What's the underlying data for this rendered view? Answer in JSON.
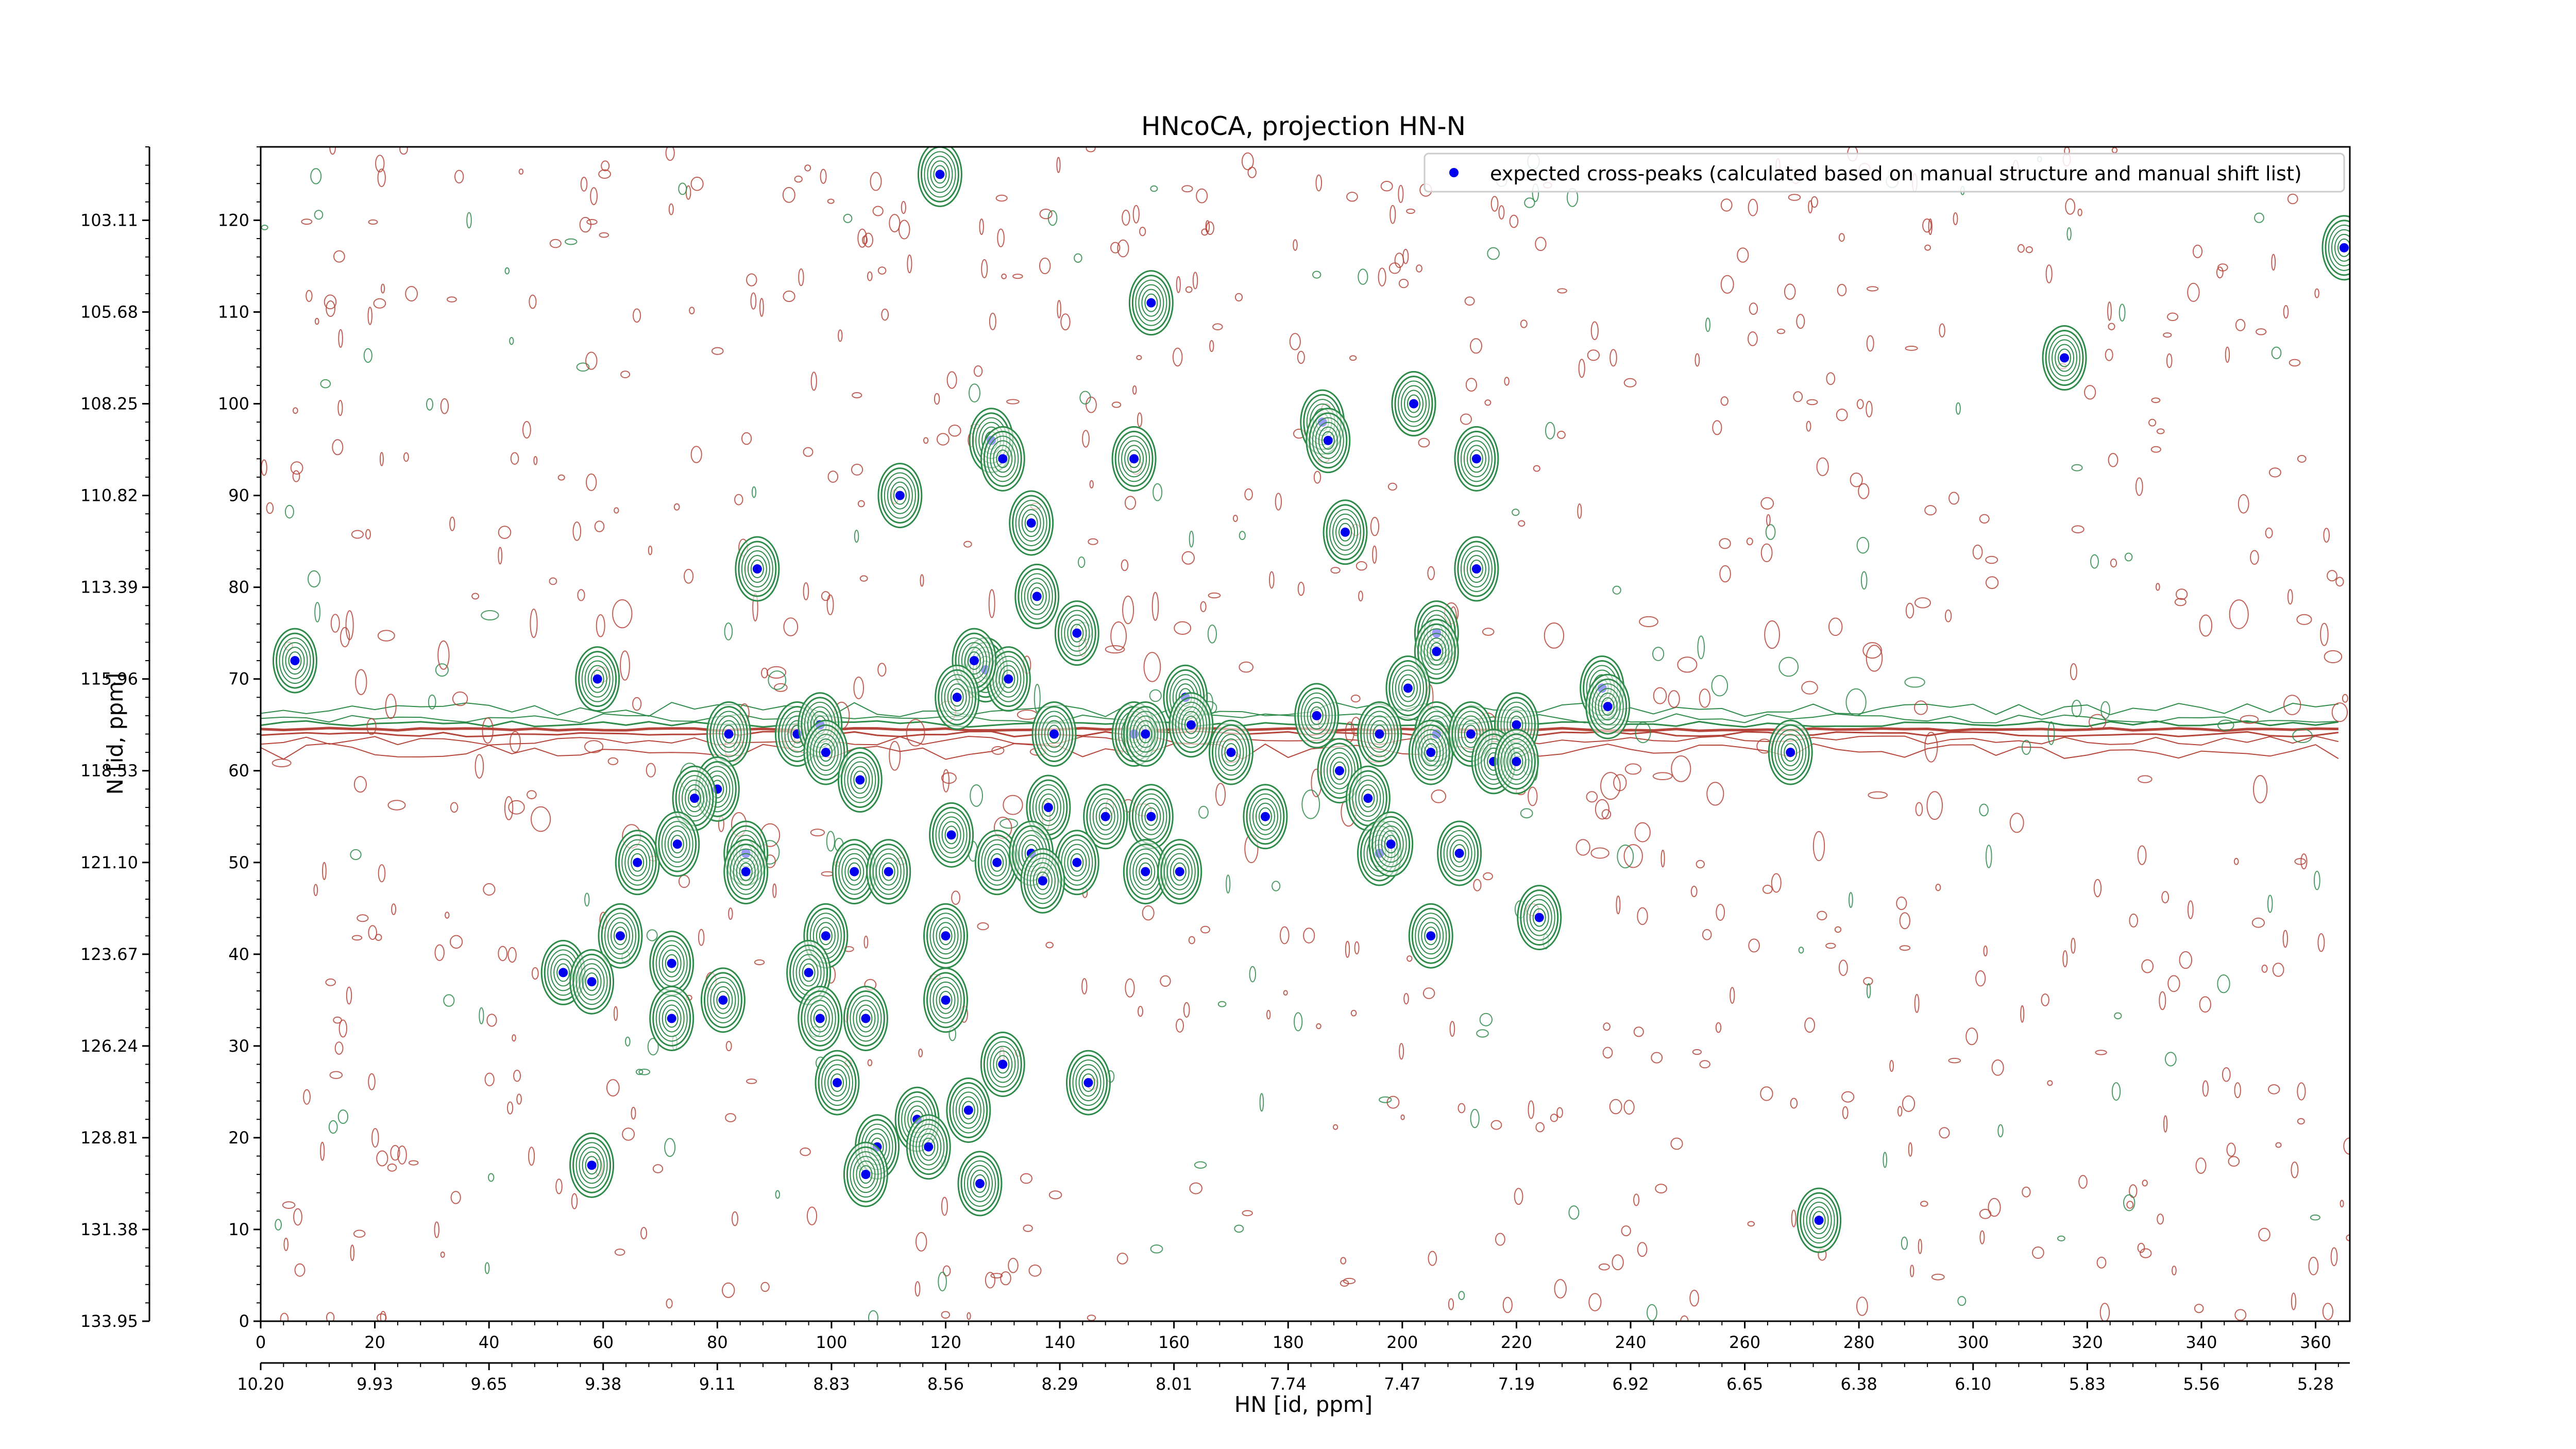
{
  "chart_data": {
    "type": "scatter",
    "title": "HNcoCA, projection HN-N",
    "xlabel": "HN [id, ppm]",
    "ylabel": "N [id, ppm]",
    "x_index_range": [
      0,
      366
    ],
    "y_index_range": [
      0,
      128
    ],
    "x_index_ticks": [
      "0",
      "20",
      "40",
      "60",
      "80",
      "100",
      "120",
      "140",
      "160",
      "180",
      "200",
      "220",
      "240",
      "260",
      "280",
      "300",
      "320",
      "340",
      "360"
    ],
    "y_index_ticks": [
      "0",
      "10",
      "20",
      "30",
      "40",
      "50",
      "60",
      "70",
      "80",
      "90",
      "100",
      "110",
      "120"
    ],
    "x_ppm_ticks": [
      "10.20",
      "9.93",
      "9.65",
      "9.38",
      "9.11",
      "8.83",
      "8.56",
      "8.29",
      "8.01",
      "7.74",
      "7.47",
      "7.19",
      "6.92",
      "6.65",
      "6.38",
      "6.10",
      "5.83",
      "5.56",
      "5.28"
    ],
    "y_ppm_ticks": [
      "133.95",
      "131.38",
      "128.81",
      "126.24",
      "123.67",
      "121.10",
      "118.53",
      "115.96",
      "113.39",
      "110.82",
      "108.25",
      "105.68",
      "103.11"
    ],
    "legend": {
      "placement": "upper-right",
      "label": "expected cross-peaks (calculated based on manual structure and manual shift list)",
      "marker_color": "#0000ee"
    },
    "colors": {
      "positive_contour": "#2e8b4a",
      "negative_contour": "#b5453a",
      "marker": "#0000ee"
    },
    "series": [
      {
        "name": "expected cross-peaks (calculated based on manual structure and manual shift list)",
        "points": [
          [
            119,
            125
          ],
          [
            365,
            117
          ],
          [
            156,
            111
          ],
          [
            316,
            105
          ],
          [
            202,
            100
          ],
          [
            186,
            98
          ],
          [
            202,
            100
          ],
          [
            187,
            96
          ],
          [
            128,
            96
          ],
          [
            130,
            94
          ],
          [
            153,
            94
          ],
          [
            213,
            94
          ],
          [
            112,
            90
          ],
          [
            135,
            87
          ],
          [
            190,
            86
          ],
          [
            87,
            82
          ],
          [
            213,
            82
          ],
          [
            136,
            79
          ],
          [
            6,
            72
          ],
          [
            59,
            70
          ],
          [
            143,
            75
          ],
          [
            206,
            75
          ],
          [
            206,
            73
          ],
          [
            127,
            71
          ],
          [
            131,
            70
          ],
          [
            125,
            72
          ],
          [
            122,
            68
          ],
          [
            162,
            68
          ],
          [
            201,
            69
          ],
          [
            235,
            69
          ],
          [
            236,
            67
          ],
          [
            185,
            66
          ],
          [
            196,
            64
          ],
          [
            206,
            64
          ],
          [
            205,
            62
          ],
          [
            212,
            64
          ],
          [
            220,
            65
          ],
          [
            82,
            64
          ],
          [
            94,
            64
          ],
          [
            98,
            65
          ],
          [
            99,
            62
          ],
          [
            139,
            64
          ],
          [
            153,
            64
          ],
          [
            155,
            64
          ],
          [
            163,
            65
          ],
          [
            170,
            62
          ],
          [
            216,
            61
          ],
          [
            220,
            61
          ],
          [
            268,
            62
          ],
          [
            105,
            59
          ],
          [
            189,
            60
          ],
          [
            194,
            57
          ],
          [
            80,
            58
          ],
          [
            76,
            57
          ],
          [
            138,
            56
          ],
          [
            148,
            55
          ],
          [
            156,
            55
          ],
          [
            176,
            55
          ],
          [
            121,
            53
          ],
          [
            104,
            49
          ],
          [
            110,
            49
          ],
          [
            129,
            50
          ],
          [
            135,
            51
          ],
          [
            143,
            50
          ],
          [
            155,
            49
          ],
          [
            161,
            49
          ],
          [
            137,
            48
          ],
          [
            66,
            50
          ],
          [
            73,
            52
          ],
          [
            85,
            51
          ],
          [
            85,
            49
          ],
          [
            196,
            51
          ],
          [
            198,
            52
          ],
          [
            210,
            51
          ],
          [
            224,
            44
          ],
          [
            63,
            42
          ],
          [
            99,
            42
          ],
          [
            120,
            42
          ],
          [
            205,
            42
          ],
          [
            53,
            38
          ],
          [
            58,
            37
          ],
          [
            72,
            39
          ],
          [
            96,
            38
          ],
          [
            81,
            35
          ],
          [
            72,
            33
          ],
          [
            98,
            33
          ],
          [
            106,
            33
          ],
          [
            120,
            35
          ],
          [
            130,
            28
          ],
          [
            145,
            26
          ],
          [
            101,
            26
          ],
          [
            115,
            22
          ],
          [
            124,
            23
          ],
          [
            117,
            19
          ],
          [
            108,
            19
          ],
          [
            106,
            16
          ],
          [
            126,
            15
          ],
          [
            58,
            17
          ],
          [
            273,
            11
          ]
        ]
      }
    ]
  }
}
